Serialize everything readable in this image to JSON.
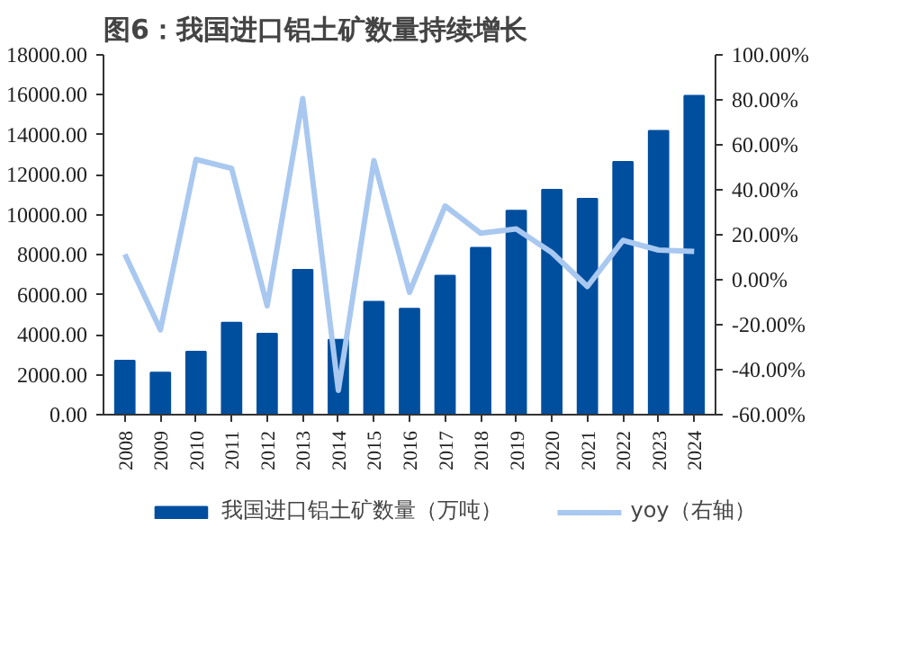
{
  "chart_data": {
    "type": "bar",
    "title": "图6：我国进口铝土矿数量持续增长",
    "categories": [
      "2008",
      "2009",
      "2010",
      "2011",
      "2012",
      "2013",
      "2014",
      "2015",
      "2016",
      "2017",
      "2018",
      "2019",
      "2020",
      "2021",
      "2022",
      "2023",
      "2024"
    ],
    "series": [
      {
        "name": "我国进口铝土矿数量（万吨）",
        "color": "#004f9f",
        "values": [
          2700,
          2100,
          3150,
          4600,
          4050,
          7250,
          3750,
          5650,
          5300,
          6950,
          8350,
          10200,
          11250,
          10800,
          12650,
          14200,
          15950
        ]
      },
      {
        "name": "yoy（右轴）",
        "type": "line",
        "axis": "y2",
        "color": "#a9c8f0",
        "values": [
          11.3,
          -22.3,
          53.5,
          49.5,
          -11.6,
          80.6,
          -49.2,
          53,
          -5.6,
          32.8,
          20.7,
          22.6,
          12.1,
          -3,
          17.5,
          13.2,
          12.6
        ]
      }
    ],
    "ylim": [
      0,
      18000
    ],
    "yticks": [
      {
        "value": 0,
        "label": "0.00"
      },
      {
        "value": 2000,
        "label": "2000.00"
      },
      {
        "value": 4000,
        "label": "4000.00"
      },
      {
        "value": 6000,
        "label": "6000.00"
      },
      {
        "value": 8000,
        "label": "8000.00"
      },
      {
        "value": 10000,
        "label": "10000.00"
      },
      {
        "value": 12000,
        "label": "12000.00"
      },
      {
        "value": 14000,
        "label": "14000.00"
      },
      {
        "value": 16000,
        "label": "16000.00"
      },
      {
        "value": 18000,
        "label": "18000.00"
      }
    ],
    "y2lim": [
      -60,
      100
    ],
    "y2ticks": [
      {
        "value": -60,
        "label": "-60.00%"
      },
      {
        "value": -40,
        "label": "-40.00%"
      },
      {
        "value": -20,
        "label": "-20.00%"
      },
      {
        "value": 0,
        "label": "0.00%"
      },
      {
        "value": 20,
        "label": "20.00%"
      },
      {
        "value": 40,
        "label": "40.00%"
      },
      {
        "value": 60,
        "label": "60.00%"
      },
      {
        "value": 80,
        "label": "80.00%"
      },
      {
        "value": 100,
        "label": "100.00%"
      }
    ],
    "legend": "bottom"
  }
}
